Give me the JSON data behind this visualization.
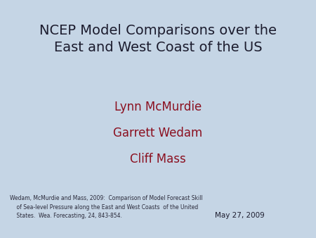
{
  "background_color": "#c5d5e5",
  "title_line1": "NCEP Model Comparisons over the",
  "title_line2": "East and West Coast of the US",
  "title_color": "#1c1c2e",
  "title_fontsize": 14,
  "authors": [
    "Lynn McMurdie",
    "Garrett Wedam",
    "Cliff Mass"
  ],
  "author_color": "#8b1020",
  "author_fontsize": 12,
  "citation_line1": "Wedam, McMurdie and Mass, 2009:  Comparison of Model Forecast Skill",
  "citation_line2": "    of Sea-level Pressure along the East and West Coasts  of the United",
  "citation_line3": "    States.  Wea. Forecasting, 24, 843-854.",
  "citation_color": "#2a2a3a",
  "citation_fontsize": 5.5,
  "date": "May 27, 2009",
  "date_color": "#1c1c2e",
  "date_fontsize": 7.5,
  "fig_width": 4.5,
  "fig_height": 3.38,
  "dpi": 100
}
